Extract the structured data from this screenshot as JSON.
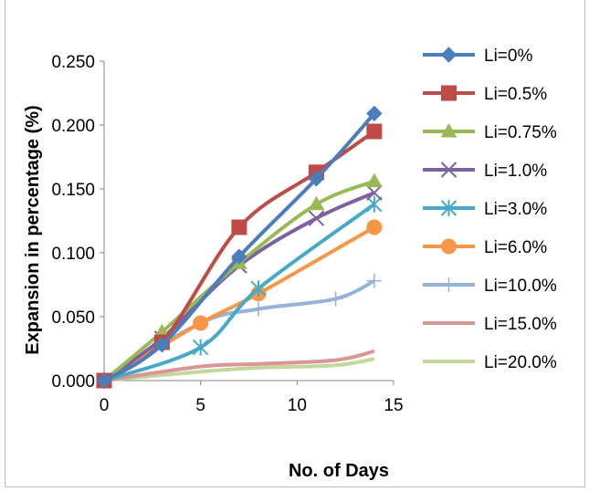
{
  "chart_data": {
    "type": "line",
    "title": "",
    "xlabel": "No. of Days",
    "ylabel": "Expansion in percentage (%)",
    "xlim": [
      0,
      15
    ],
    "ylim": [
      0,
      0.25
    ],
    "x_ticks": [
      0,
      5,
      10,
      15
    ],
    "x_tick_labels": [
      "0",
      "5",
      "10",
      "15"
    ],
    "y_ticks": [
      0,
      0.05,
      0.1,
      0.15,
      0.2,
      0.25
    ],
    "y_tick_labels": [
      "0.000",
      "0.050",
      "0.100",
      "0.150",
      "0.200",
      "0.250"
    ],
    "grid": false,
    "legend_position": "right",
    "series": [
      {
        "name": "Li=0%",
        "color": "#4a7ebb",
        "marker": "diamond",
        "x": [
          0,
          3,
          7,
          11,
          14
        ],
        "y": [
          0.0,
          0.028,
          0.097,
          0.158,
          0.209
        ]
      },
      {
        "name": "Li=0.5%",
        "color": "#be4b48",
        "marker": "square",
        "x": [
          0,
          3,
          7,
          11,
          14
        ],
        "y": [
          0.0,
          0.03,
          0.12,
          0.163,
          0.195
        ]
      },
      {
        "name": "Li=0.75%",
        "color": "#98b954",
        "marker": "triangle",
        "x": [
          0,
          3,
          7,
          11,
          14
        ],
        "y": [
          0.0,
          0.038,
          0.092,
          0.138,
          0.156
        ]
      },
      {
        "name": "Li=1.0%",
        "color": "#7d60a0",
        "marker": "x",
        "x": [
          0,
          3,
          7,
          11,
          14
        ],
        "y": [
          0.0,
          0.033,
          0.09,
          0.127,
          0.147
        ]
      },
      {
        "name": "Li=3.0%",
        "color": "#46aac5",
        "marker": "star",
        "x": [
          0,
          5,
          8,
          14
        ],
        "y": [
          0.0,
          0.026,
          0.072,
          0.138
        ]
      },
      {
        "name": "Li=6.0%",
        "color": "#f79646",
        "marker": "circle",
        "x": [
          0,
          5,
          8,
          14
        ],
        "y": [
          0.0,
          0.045,
          0.068,
          0.12
        ]
      },
      {
        "name": "Li=10.0%",
        "color": "#95b3d7",
        "marker": "plus",
        "x": [
          0,
          5,
          8,
          12,
          14
        ],
        "y": [
          0.0,
          0.045,
          0.056,
          0.064,
          0.078
        ]
      },
      {
        "name": "Li=15.0%",
        "color": "#d99694",
        "marker": "none",
        "x": [
          0,
          5,
          8,
          12,
          14
        ],
        "y": [
          0.0,
          0.011,
          0.013,
          0.016,
          0.023
        ]
      },
      {
        "name": "Li=20.0%",
        "color": "#c3d69b",
        "marker": "none",
        "x": [
          0,
          5,
          8,
          12,
          14
        ],
        "y": [
          0.0,
          0.007,
          0.01,
          0.012,
          0.017
        ]
      }
    ]
  }
}
